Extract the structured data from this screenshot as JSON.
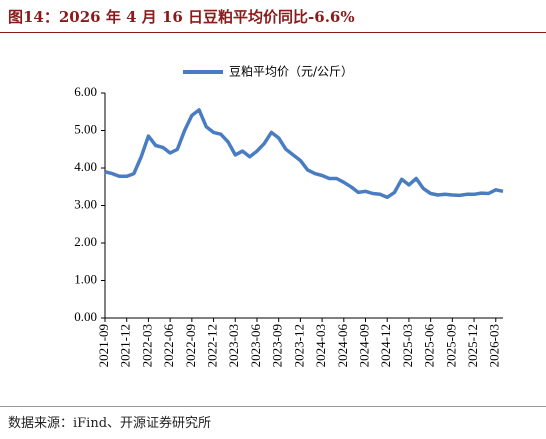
{
  "chart_data": {
    "type": "line",
    "title": "图14：2026 年 4 月 16 日豆粕平均价同比-6.6%",
    "source": "数据来源：iFind、开源证券研究所",
    "categories": [
      "2021-09",
      null,
      null,
      "2021-12",
      null,
      null,
      "2022-03",
      null,
      null,
      "2022-06",
      null,
      null,
      "2022-09",
      null,
      null,
      "2022-12",
      null,
      null,
      "2023-03",
      null,
      null,
      "2023-06",
      null,
      null,
      "2023-09",
      null,
      null,
      "2023-12",
      null,
      null,
      "2024-03",
      null,
      null,
      "2024-06",
      null,
      null,
      "2024-09",
      null,
      null,
      "2024-12",
      null,
      null,
      "2025-03",
      null,
      null,
      "2025-06",
      null,
      null,
      "2025-09",
      null,
      null,
      "2025-12",
      null,
      null,
      "2026-03",
      null
    ],
    "series": [
      {
        "name": "豆粕平均价（元/公斤）",
        "color": "#4a7cc4",
        "values": [
          3.9,
          3.85,
          3.78,
          3.78,
          3.85,
          4.3,
          4.85,
          4.6,
          4.55,
          4.4,
          4.5,
          5.0,
          5.4,
          5.55,
          5.1,
          4.95,
          4.9,
          4.7,
          4.35,
          4.45,
          4.3,
          4.45,
          4.65,
          4.95,
          4.8,
          4.5,
          4.35,
          4.2,
          3.95,
          3.85,
          3.8,
          3.72,
          3.72,
          3.62,
          3.5,
          3.35,
          3.38,
          3.32,
          3.3,
          3.22,
          3.35,
          3.7,
          3.55,
          3.72,
          3.45,
          3.32,
          3.28,
          3.3,
          3.28,
          3.27,
          3.3,
          3.3,
          3.33,
          3.32,
          3.42,
          3.38
        ]
      }
    ],
    "ylim": [
      0,
      6
    ],
    "yticks": [
      {
        "value": 0,
        "label": "0.00"
      },
      {
        "value": 1,
        "label": "1.00"
      },
      {
        "value": 2,
        "label": "2.00"
      },
      {
        "value": 3,
        "label": "3.00"
      },
      {
        "value": 4,
        "label": "4.00"
      },
      {
        "value": 5,
        "label": "5.00"
      },
      {
        "value": 6,
        "label": "6.00"
      }
    ],
    "legend": "top"
  }
}
